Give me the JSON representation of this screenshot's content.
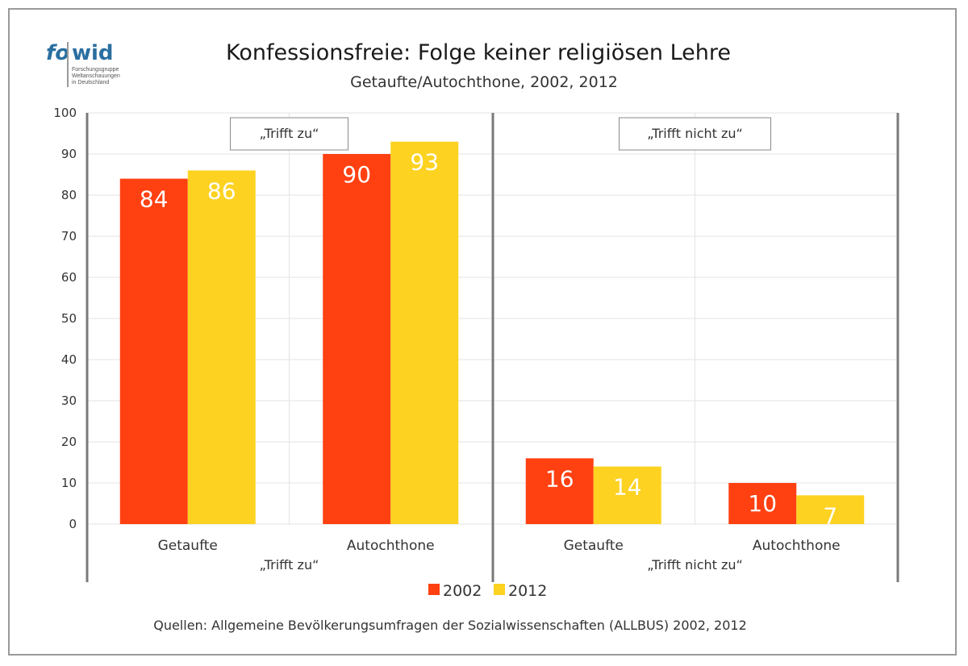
{
  "logo": {
    "part1": "fo",
    "part2": "wid",
    "line1": "Forschungsgruppe",
    "line2": "Weltanschauungen",
    "line3": "in Deutschland",
    "color": "#2a6fa0"
  },
  "colors": {
    "series_2002": "#ff4011",
    "series_2012": "#fdd221",
    "grid": "#e3e3e3",
    "divider": "#7a7a7a"
  },
  "chart_data": {
    "type": "bar",
    "title": "Konfessionsfreie: Folge keiner religiösen Lehre",
    "subtitle": "Getaufte/Autochthone, 2002, 2012",
    "ylim": [
      0,
      100
    ],
    "yticks": [
      0,
      10,
      20,
      30,
      40,
      50,
      60,
      70,
      80,
      90,
      100
    ],
    "grid": true,
    "legend_position": "bottom",
    "series": [
      {
        "name": "2002",
        "color": "#ff4011"
      },
      {
        "name": "2012",
        "color": "#fdd221"
      }
    ],
    "panels": [
      {
        "label": "„Trifft zu“",
        "box_label": "„Trifft zu“",
        "categories": [
          "Getaufte",
          "Autochthone"
        ],
        "values": {
          "2002": [
            84,
            90
          ],
          "2012": [
            86,
            93
          ]
        }
      },
      {
        "label": "„Trifft nicht zu“",
        "box_label": "„Trifft nicht zu“",
        "categories": [
          "Getaufte",
          "Autochthone"
        ],
        "values": {
          "2002": [
            16,
            10
          ],
          "2012": [
            14,
            7
          ]
        }
      }
    ],
    "source": "Quellen: Allgemeine Bevölkerungsumfragen der Sozialwissenschaften (ALLBUS) 2002, 2012"
  }
}
